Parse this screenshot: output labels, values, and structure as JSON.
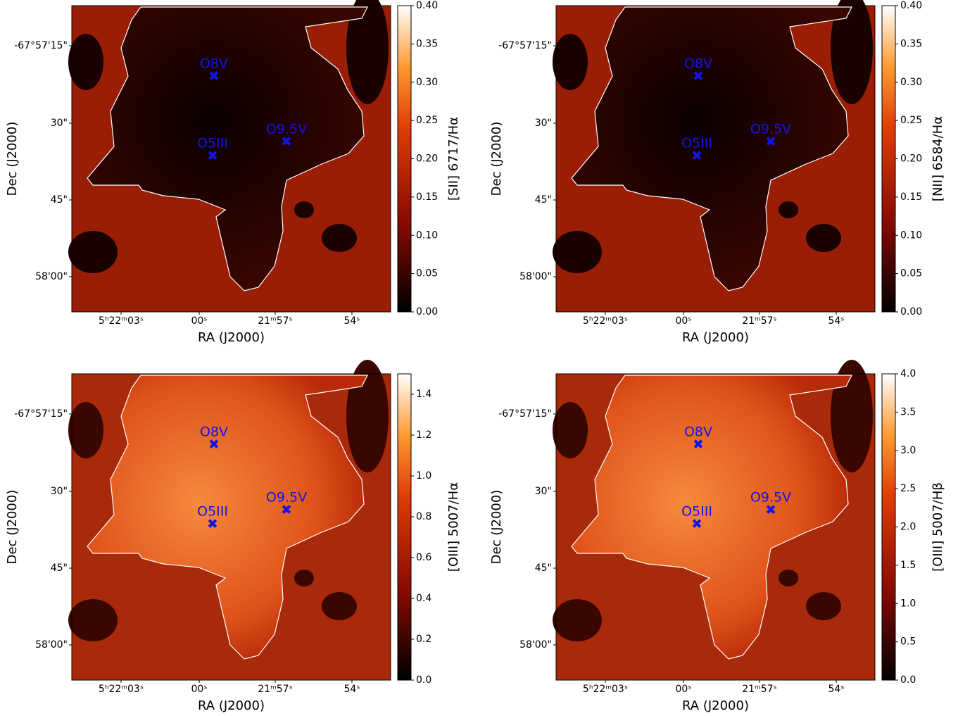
{
  "chart_data": [
    {
      "type": "heatmap",
      "xlabel": "RA (J2000)",
      "ylabel": "Dec (J2000)",
      "x_tick_labels": [
        "5ʰ22ᵐ03ˢ",
        "00ˢ",
        "21ᵐ57ˢ",
        "54ˢ"
      ],
      "y_tick_labels": [
        "-67°57'15\"",
        "30\"",
        "45\"",
        "58'00\""
      ],
      "annotations": [
        "O8V",
        "O9.5V",
        "O5III"
      ],
      "colorbar_label": "[SII] 6717/Hα",
      "clim": [
        0,
        0.4
      ],
      "cticks": [
        {
          "value": 0,
          "label": "0.00"
        },
        {
          "value": 0.05,
          "label": "0.05"
        },
        {
          "value": 0.1,
          "label": "0.10"
        },
        {
          "value": 0.15,
          "label": "0.15"
        },
        {
          "value": 0.2,
          "label": "0.20"
        },
        {
          "value": 0.25,
          "label": "0.25"
        },
        {
          "value": 0.3,
          "label": "0.30"
        },
        {
          "value": 0.35,
          "label": "0.35"
        },
        {
          "value": 0.4,
          "label": "0.40"
        }
      ]
    },
    {
      "type": "heatmap",
      "xlabel": "RA (J2000)",
      "ylabel": "Dec (J2000)",
      "x_tick_labels": [
        "5ʰ22ᵐ03ˢ",
        "00ˢ",
        "21ᵐ57ˢ",
        "54ˢ"
      ],
      "y_tick_labels": [
        "-67°57'15\"",
        "30\"",
        "45\"",
        "58'00\""
      ],
      "annotations": [
        "O8V",
        "O9.5V",
        "O5III"
      ],
      "colorbar_label": "[NII] 6584/Hα",
      "clim": [
        0,
        0.4
      ],
      "cticks": [
        {
          "value": 0,
          "label": "0.00"
        },
        {
          "value": 0.05,
          "label": "0.05"
        },
        {
          "value": 0.1,
          "label": "0.10"
        },
        {
          "value": 0.15,
          "label": "0.15"
        },
        {
          "value": 0.2,
          "label": "0.20"
        },
        {
          "value": 0.25,
          "label": "0.25"
        },
        {
          "value": 0.3,
          "label": "0.30"
        },
        {
          "value": 0.35,
          "label": "0.35"
        },
        {
          "value": 0.4,
          "label": "0.40"
        }
      ]
    },
    {
      "type": "heatmap",
      "xlabel": "RA (J2000)",
      "ylabel": "Dec (J2000)",
      "x_tick_labels": [
        "5ʰ22ᵐ03ˢ",
        "00ˢ",
        "21ᵐ57ˢ",
        "54ˢ"
      ],
      "y_tick_labels": [
        "-67°57'15\"",
        "30\"",
        "45\"",
        "58'00\""
      ],
      "annotations": [
        "O8V",
        "O9.5V",
        "O5III"
      ],
      "colorbar_label": "[OIII] 5007/Hα",
      "clim": [
        0,
        1.5
      ],
      "cticks": [
        {
          "value": 0,
          "label": "0.0"
        },
        {
          "value": 0.2,
          "label": "0.2"
        },
        {
          "value": 0.4,
          "label": "0.4"
        },
        {
          "value": 0.6,
          "label": "0.6"
        },
        {
          "value": 0.8,
          "label": "0.8"
        },
        {
          "value": 1,
          "label": "1.0"
        },
        {
          "value": 1.2,
          "label": "1.2"
        },
        {
          "value": 1.4,
          "label": "1.4"
        }
      ]
    },
    {
      "type": "heatmap",
      "xlabel": "RA (J2000)",
      "ylabel": "Dec (J2000)",
      "x_tick_labels": [
        "5ʰ22ᵐ03ˢ",
        "00ˢ",
        "21ᵐ57ˢ",
        "54ˢ"
      ],
      "y_tick_labels": [
        "-67°57'15\"",
        "30\"",
        "45\"",
        "58'00\""
      ],
      "annotations": [
        "O8V",
        "O9.5V",
        "O5III"
      ],
      "colorbar_label": "[OIII] 5007/Hβ",
      "clim": [
        0,
        4
      ],
      "cticks": [
        {
          "value": 0,
          "label": "0.0"
        },
        {
          "value": 0.5,
          "label": "0.5"
        },
        {
          "value": 1,
          "label": "1.0"
        },
        {
          "value": 1.5,
          "label": "1.5"
        },
        {
          "value": 2,
          "label": "2.0"
        },
        {
          "value": 2.5,
          "label": "2.5"
        },
        {
          "value": 3,
          "label": "3.0"
        },
        {
          "value": 3.5,
          "label": "3.5"
        },
        {
          "value": 4,
          "label": "4.0"
        }
      ]
    }
  ]
}
